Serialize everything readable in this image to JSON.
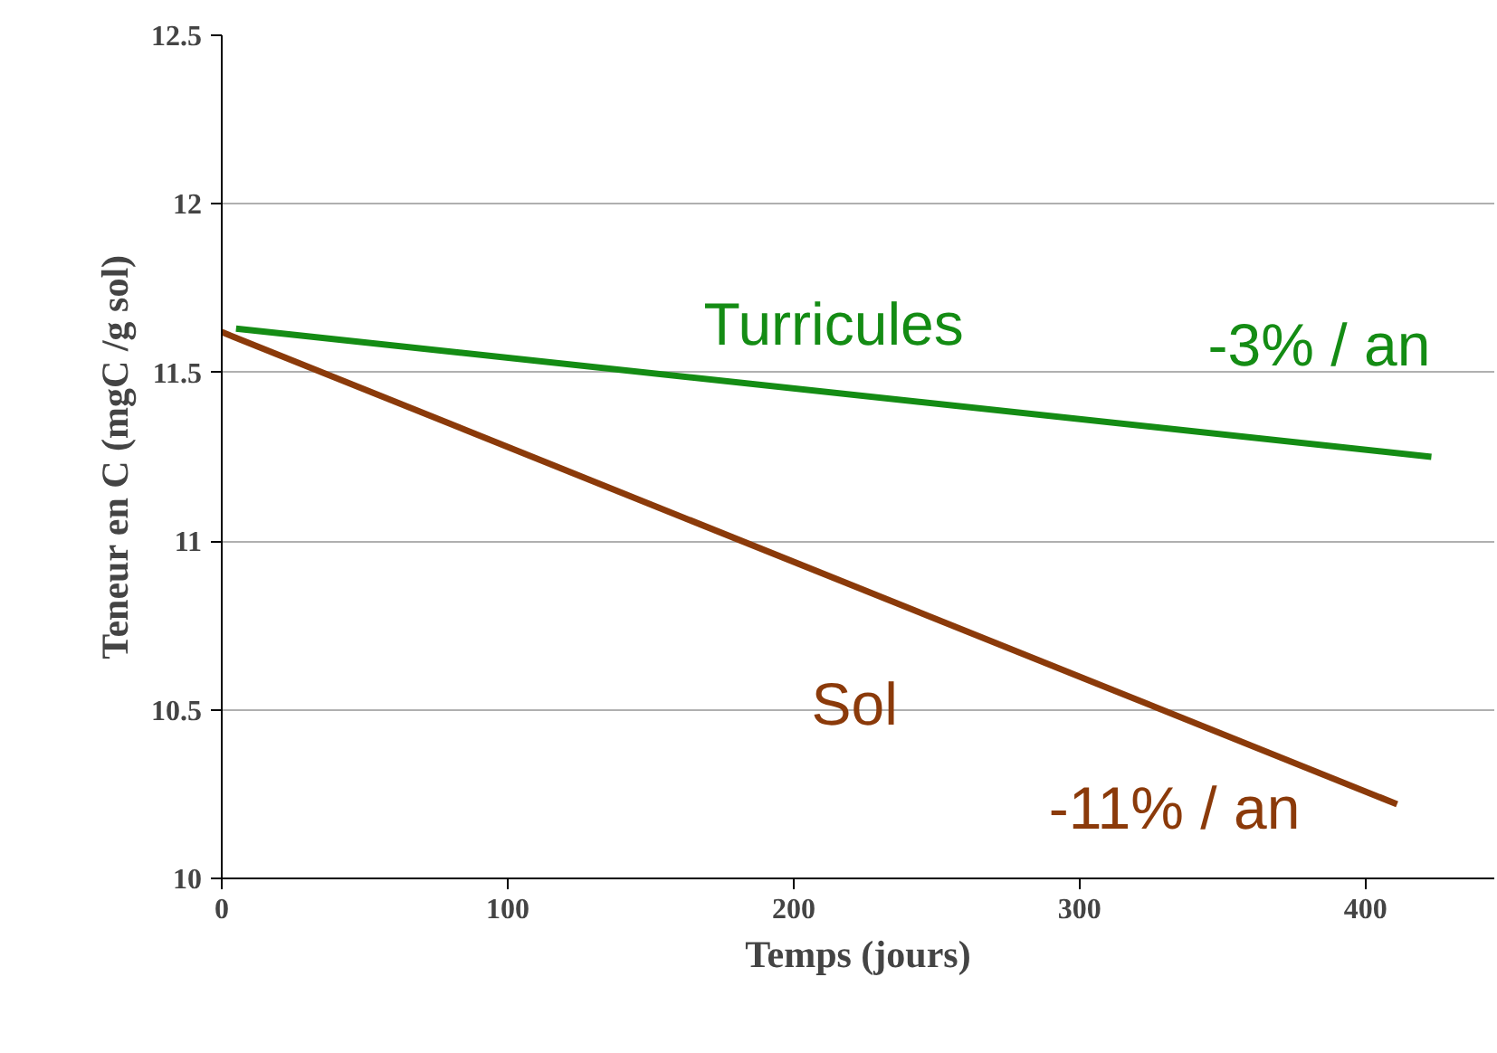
{
  "chart_data": {
    "type": "line",
    "xlabel": "Temps (jours)",
    "ylabel": "Teneur en C (mgC /g sol)",
    "xlim": [
      0,
      445
    ],
    "ylim": [
      10,
      12.5
    ],
    "xticks": [
      0,
      100,
      200,
      300,
      400
    ],
    "yticks": [
      10,
      10.5,
      11,
      11.5,
      12,
      12.5
    ],
    "grid": "y",
    "marker": "none",
    "line_style": "solid",
    "series": [
      {
        "name": "Turricules",
        "color": "#148c14",
        "x": [
          5,
          423
        ],
        "values": [
          11.63,
          11.25
        ]
      },
      {
        "name": "Sol",
        "color": "#8b3a0a",
        "x": [
          0,
          411
        ],
        "values": [
          11.62,
          10.22
        ]
      }
    ],
    "annotations": [
      "-3% / an",
      "-11% / an"
    ]
  }
}
